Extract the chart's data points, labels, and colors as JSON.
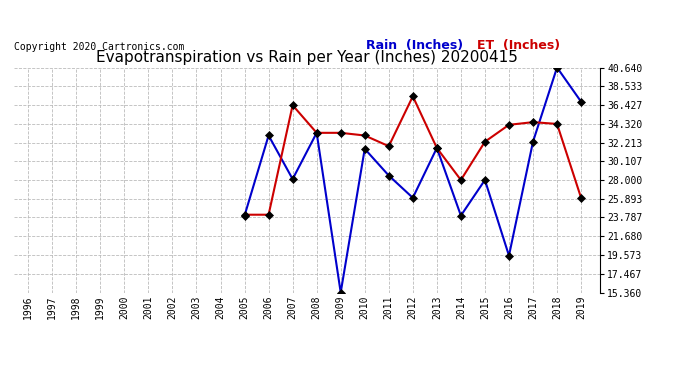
{
  "title": "Evapotranspiration vs Rain per Year (Inches) 20200415",
  "copyright": "Copyright 2020 Cartronics.com",
  "years": [
    1996,
    1997,
    1998,
    1999,
    2000,
    2001,
    2002,
    2003,
    2004,
    2005,
    2006,
    2007,
    2008,
    2009,
    2010,
    2011,
    2012,
    2013,
    2014,
    2015,
    2016,
    2017,
    2018,
    2019
  ],
  "rain": [
    null,
    null,
    null,
    null,
    null,
    null,
    null,
    null,
    null,
    24.0,
    33.0,
    28.1,
    33.3,
    15.36,
    31.5,
    28.5,
    26.0,
    31.6,
    24.0,
    28.0,
    19.5,
    32.3,
    40.64,
    36.8
  ],
  "et": [
    null,
    null,
    null,
    null,
    null,
    null,
    null,
    null,
    null,
    24.1,
    24.1,
    36.4,
    33.3,
    33.3,
    33.0,
    31.8,
    37.4,
    31.6,
    28.0,
    32.3,
    34.2,
    34.5,
    34.3,
    26.0
  ],
  "rain_color": "#0000cc",
  "et_color": "#cc0000",
  "rain_label": "Rain  (Inches)",
  "et_label": "ET  (Inches)",
  "ylim_min": 15.36,
  "ylim_max": 40.64,
  "yticks": [
    15.36,
    17.467,
    19.573,
    21.68,
    23.787,
    25.893,
    28.0,
    30.107,
    32.213,
    34.32,
    36.427,
    38.533,
    40.64
  ],
  "background_color": "#ffffff",
  "grid_color": "#bbbbbb",
  "title_fontsize": 11,
  "copyright_fontsize": 7,
  "legend_fontsize": 9,
  "tick_fontsize": 7,
  "marker_size": 4,
  "line_width": 1.5
}
